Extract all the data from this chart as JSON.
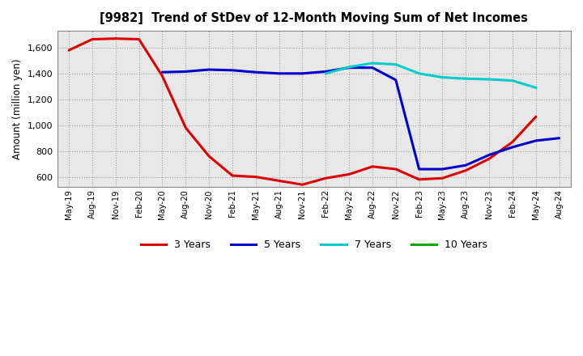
{
  "title": "[9982]  Trend of StDev of 12-Month Moving Sum of Net Incomes",
  "ylabel": "Amount (million yen)",
  "background_color": "#ffffff",
  "plot_bg_color": "#e8e8e8",
  "grid_color": "#999999",
  "x_labels": [
    "May-19",
    "Aug-19",
    "Nov-19",
    "Feb-20",
    "May-20",
    "Aug-20",
    "Nov-20",
    "Feb-21",
    "May-21",
    "Aug-21",
    "Nov-21",
    "Feb-22",
    "May-22",
    "Aug-22",
    "Nov-22",
    "Feb-23",
    "May-23",
    "Aug-23",
    "Nov-23",
    "Feb-24",
    "May-24",
    "Aug-24"
  ],
  "series": {
    "3 Years": {
      "color": "#dd0000",
      "values": [
        1580,
        1665,
        1670,
        1665,
        1380,
        980,
        760,
        610,
        600,
        570,
        540,
        590,
        620,
        680,
        660,
        580,
        590,
        650,
        740,
        870,
        1065,
        null
      ]
    },
    "5 Years": {
      "color": "#0000cc",
      "values": [
        null,
        null,
        null,
        null,
        1410,
        1415,
        1430,
        1425,
        1410,
        1400,
        1400,
        1415,
        1445,
        1445,
        1350,
        660,
        660,
        690,
        770,
        830,
        880,
        900
      ]
    },
    "7 Years": {
      "color": "#00cccc",
      "values": [
        null,
        null,
        null,
        null,
        null,
        null,
        null,
        null,
        null,
        null,
        null,
        1400,
        1450,
        1480,
        1470,
        1400,
        1370,
        1360,
        1355,
        1345,
        1290,
        null
      ]
    },
    "10 Years": {
      "color": "#00aa00",
      "values": [
        null,
        null,
        null,
        null,
        null,
        null,
        null,
        null,
        null,
        null,
        null,
        null,
        null,
        null,
        null,
        null,
        null,
        null,
        null,
        null,
        null,
        null
      ]
    }
  },
  "ylim": [
    520,
    1730
  ],
  "yticks": [
    600,
    800,
    1000,
    1200,
    1400,
    1600
  ],
  "legend_labels": [
    "3 Years",
    "5 Years",
    "7 Years",
    "10 Years"
  ],
  "legend_colors": [
    "#dd0000",
    "#0000cc",
    "#00cccc",
    "#00aa00"
  ]
}
